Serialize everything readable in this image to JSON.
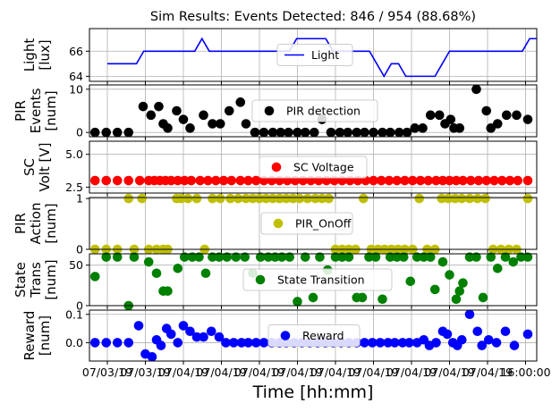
{
  "figure": {
    "title": "Sim Results: Events Detected: 846 / 954 (88.68%)",
    "xlabel": "Time [hh:mm]",
    "x_tick_labels": [
      "07/03/19",
      "07/03/19",
      "07/04/19",
      "07/04/19",
      "07/04/19",
      "07/04/19",
      "07/04/19",
      "07/04/19",
      "07/04/19",
      "07/04/19",
      "07/04/19",
      "16:00:00"
    ]
  },
  "chart_data": [
    {
      "type": "line",
      "name": "light",
      "ylabel": [
        "Light",
        "[lux]"
      ],
      "legend": "Light",
      "color": "#0000ff",
      "ylim": [
        63.6,
        67.8
      ],
      "yticks": [
        64,
        66
      ],
      "step": true,
      "x": [
        0,
        1,
        2,
        3,
        4,
        5,
        6,
        7,
        8,
        9,
        10,
        11,
        12,
        13,
        14,
        15,
        16,
        17,
        18,
        19,
        20,
        21,
        22,
        23,
        24,
        25,
        26,
        27,
        28,
        29,
        30,
        31,
        32,
        33,
        34,
        35,
        36,
        37,
        38,
        39,
        40,
        41,
        42,
        43,
        44,
        45,
        46,
        47,
        48,
        49,
        50,
        51,
        52,
        53,
        54,
        55,
        56,
        57,
        58,
        59
      ],
      "values": [
        65,
        65,
        65,
        65,
        65,
        66,
        66,
        66,
        66,
        66,
        66,
        66,
        66,
        67,
        66,
        66,
        66,
        66,
        66,
        66,
        66,
        66,
        66,
        66,
        66,
        66,
        67,
        67,
        67,
        67,
        67,
        66,
        66,
        66,
        66,
        66,
        66,
        65,
        64,
        65,
        65,
        64,
        64,
        64,
        64,
        64,
        65,
        66,
        66,
        66,
        66,
        66,
        66,
        66,
        66,
        66,
        66,
        66,
        67,
        67
      ]
    },
    {
      "type": "scatter",
      "name": "pir",
      "ylabel": [
        "PIR",
        "Events",
        "[num]"
      ],
      "legend": "PIR detection",
      "color": "#000000",
      "ylim": [
        -1,
        11
      ],
      "yticks": [
        0,
        10
      ],
      "points": [
        [
          0.5,
          0
        ],
        [
          1.5,
          0
        ],
        [
          2.5,
          0
        ],
        [
          3.5,
          0
        ],
        [
          4.8,
          6
        ],
        [
          5.5,
          4
        ],
        [
          6.2,
          6
        ],
        [
          6.6,
          2
        ],
        [
          7.0,
          1
        ],
        [
          7.8,
          5
        ],
        [
          8.4,
          3
        ],
        [
          9.0,
          1
        ],
        [
          10.2,
          4
        ],
        [
          11.0,
          2
        ],
        [
          11.7,
          2
        ],
        [
          12.5,
          5
        ],
        [
          13.5,
          7
        ],
        [
          14.0,
          2
        ],
        [
          14.8,
          0
        ],
        [
          15.6,
          0
        ],
        [
          16.4,
          0
        ],
        [
          17.1,
          0
        ],
        [
          17.8,
          0
        ],
        [
          18.6,
          0
        ],
        [
          19.3,
          0
        ],
        [
          20.1,
          0
        ],
        [
          20.8,
          3
        ],
        [
          21.6,
          0
        ],
        [
          22.4,
          0
        ],
        [
          23.1,
          0
        ],
        [
          23.9,
          0
        ],
        [
          24.6,
          0
        ],
        [
          25.4,
          0
        ],
        [
          26.2,
          0
        ],
        [
          26.9,
          0
        ],
        [
          27.7,
          0
        ],
        [
          28.4,
          0
        ],
        [
          29.1,
          1
        ],
        [
          29.8,
          1
        ],
        [
          30.5,
          4
        ],
        [
          31.3,
          4
        ],
        [
          31.8,
          2
        ],
        [
          32.3,
          3
        ],
        [
          32.6,
          1
        ],
        [
          33.1,
          1
        ],
        [
          34.6,
          10
        ],
        [
          35.5,
          5
        ],
        [
          35.9,
          1
        ],
        [
          36.5,
          2
        ],
        [
          37.3,
          4
        ],
        [
          38.2,
          4
        ],
        [
          39.2,
          3
        ]
      ]
    },
    {
      "type": "scatter",
      "name": "sc",
      "ylabel": [
        "SC",
        "Volt [V]"
      ],
      "legend": "SC Voltage",
      "color": "#ff0000",
      "ylim": [
        2.05,
        6.0
      ],
      "yticks": [
        2.5,
        5.0
      ],
      "points": [
        [
          0.5,
          3
        ],
        [
          1.5,
          3
        ],
        [
          2.5,
          3
        ],
        [
          3.5,
          3
        ],
        [
          4.5,
          3
        ],
        [
          5.3,
          3
        ],
        [
          5.8,
          3
        ],
        [
          6.3,
          3
        ],
        [
          6.8,
          3
        ],
        [
          7.3,
          3
        ],
        [
          7.9,
          3
        ],
        [
          8.5,
          3
        ],
        [
          9.1,
          3
        ],
        [
          9.9,
          3
        ],
        [
          10.6,
          3
        ],
        [
          11.3,
          3
        ],
        [
          12.0,
          3
        ],
        [
          12.7,
          3
        ],
        [
          13.5,
          3
        ],
        [
          14.2,
          3
        ],
        [
          14.9,
          3
        ],
        [
          15.6,
          3
        ],
        [
          16.3,
          3
        ],
        [
          17.0,
          3
        ],
        [
          17.7,
          3
        ],
        [
          18.4,
          3
        ],
        [
          19.1,
          3
        ],
        [
          19.8,
          3
        ],
        [
          20.5,
          3
        ],
        [
          21.2,
          3
        ],
        [
          21.9,
          3
        ],
        [
          22.6,
          3
        ],
        [
          23.3,
          3
        ],
        [
          24.0,
          3
        ],
        [
          24.7,
          3
        ],
        [
          25.4,
          3
        ],
        [
          26.1,
          3
        ],
        [
          26.8,
          3
        ],
        [
          27.5,
          3
        ],
        [
          28.2,
          3
        ],
        [
          28.9,
          3
        ],
        [
          29.6,
          3
        ],
        [
          30.3,
          3
        ],
        [
          31.0,
          3
        ],
        [
          31.6,
          3
        ],
        [
          32.2,
          3
        ],
        [
          32.8,
          3
        ],
        [
          33.4,
          3
        ],
        [
          34.1,
          3
        ],
        [
          34.8,
          3
        ],
        [
          35.5,
          3
        ],
        [
          36.2,
          3
        ],
        [
          36.9,
          3
        ],
        [
          37.6,
          3
        ],
        [
          38.3,
          3
        ],
        [
          39.2,
          3
        ]
      ]
    },
    {
      "type": "scatter",
      "name": "pir-action",
      "ylabel": [
        "PIR",
        "Action",
        "[num]"
      ],
      "legend": "PIR_OnOff",
      "color": "#bfbf00",
      "ylim": [
        0,
        1.02
      ],
      "yticks": [
        0,
        1
      ],
      "points": [
        [
          0.5,
          0
        ],
        [
          1.5,
          0
        ],
        [
          2.5,
          0
        ],
        [
          3.5,
          1
        ],
        [
          4.0,
          0
        ],
        [
          4.7,
          1
        ],
        [
          5.3,
          0
        ],
        [
          6.0,
          0
        ],
        [
          6.6,
          0
        ],
        [
          7.0,
          0
        ],
        [
          7.8,
          1
        ],
        [
          8.2,
          1
        ],
        [
          8.8,
          1
        ],
        [
          9.6,
          1
        ],
        [
          10.3,
          0
        ],
        [
          11.0,
          1
        ],
        [
          11.7,
          1
        ],
        [
          12.6,
          1
        ],
        [
          13.3,
          1
        ],
        [
          14.0,
          1
        ],
        [
          14.6,
          1
        ],
        [
          15.2,
          1
        ],
        [
          15.8,
          1
        ],
        [
          16.4,
          1
        ],
        [
          17.0,
          1
        ],
        [
          17.6,
          1
        ],
        [
          18.2,
          1
        ],
        [
          18.8,
          1
        ],
        [
          19.5,
          1
        ],
        [
          20.2,
          1
        ],
        [
          20.8,
          1
        ],
        [
          21.4,
          1
        ],
        [
          22.0,
          0
        ],
        [
          22.6,
          0
        ],
        [
          23.2,
          0
        ],
        [
          23.8,
          0
        ],
        [
          24.5,
          1
        ],
        [
          25.2,
          0
        ],
        [
          25.8,
          0
        ],
        [
          26.4,
          0
        ],
        [
          27.0,
          0
        ],
        [
          27.6,
          0
        ],
        [
          28.2,
          0
        ],
        [
          28.9,
          0
        ],
        [
          29.5,
          1
        ],
        [
          30.2,
          0
        ],
        [
          30.9,
          0
        ],
        [
          31.5,
          1
        ],
        [
          32.1,
          1
        ],
        [
          32.7,
          1
        ],
        [
          33.3,
          1
        ],
        [
          34.0,
          1
        ],
        [
          34.7,
          1
        ],
        [
          35.4,
          1
        ],
        [
          36.1,
          0
        ],
        [
          36.8,
          0
        ],
        [
          37.5,
          0
        ],
        [
          38.2,
          0
        ],
        [
          39.2,
          1
        ]
      ]
    },
    {
      "type": "scatter",
      "name": "state-trans",
      "ylabel": [
        "State",
        "Trans",
        "[num]"
      ],
      "legend": "State Transition",
      "color": "#008000",
      "ylim": [
        0,
        64
      ],
      "yticks": [
        0,
        50
      ],
      "points": [
        [
          0.5,
          36
        ],
        [
          1.5,
          60
        ],
        [
          2.5,
          60
        ],
        [
          3.5,
          0
        ],
        [
          4.0,
          60
        ],
        [
          5.3,
          54
        ],
        [
          6.0,
          40
        ],
        [
          6.6,
          18
        ],
        [
          7.0,
          18
        ],
        [
          7.9,
          46
        ],
        [
          8.5,
          60
        ],
        [
          9.2,
          60
        ],
        [
          9.8,
          60
        ],
        [
          10.4,
          40
        ],
        [
          11.0,
          60
        ],
        [
          11.6,
          60
        ],
        [
          12.3,
          60
        ],
        [
          13.1,
          60
        ],
        [
          13.9,
          60
        ],
        [
          14.6,
          40
        ],
        [
          15.3,
          60
        ],
        [
          16.0,
          60
        ],
        [
          16.6,
          60
        ],
        [
          17.2,
          60
        ],
        [
          17.9,
          60
        ],
        [
          18.6,
          5
        ],
        [
          19.3,
          60
        ],
        [
          20.0,
          10
        ],
        [
          20.6,
          60
        ],
        [
          21.3,
          44
        ],
        [
          22.0,
          60
        ],
        [
          22.6,
          60
        ],
        [
          23.2,
          60
        ],
        [
          23.9,
          10
        ],
        [
          24.4,
          10
        ],
        [
          25.0,
          60
        ],
        [
          25.6,
          60
        ],
        [
          26.2,
          8
        ],
        [
          26.9,
          60
        ],
        [
          27.5,
          60
        ],
        [
          28.1,
          60
        ],
        [
          28.7,
          30
        ],
        [
          29.3,
          60
        ],
        [
          29.9,
          60
        ],
        [
          30.5,
          60
        ],
        [
          30.9,
          20
        ],
        [
          31.6,
          54
        ],
        [
          32.2,
          38
        ],
        [
          32.8,
          8
        ],
        [
          33.1,
          18
        ],
        [
          33.4,
          28
        ],
        [
          34.0,
          60
        ],
        [
          34.6,
          60
        ],
        [
          35.2,
          10
        ],
        [
          35.9,
          60
        ],
        [
          36.5,
          46
        ],
        [
          37.2,
          60
        ],
        [
          37.9,
          54
        ],
        [
          38.6,
          60
        ],
        [
          39.2,
          60
        ]
      ]
    },
    {
      "type": "scatter",
      "name": "reward",
      "ylabel": [
        "Reward",
        "[num]"
      ],
      "legend": "Reward",
      "color": "#0000ff",
      "ylim": [
        -0.065,
        0.115
      ],
      "yticks": [
        0.0,
        0.1
      ],
      "points": [
        [
          0.5,
          0
        ],
        [
          1.5,
          0
        ],
        [
          2.5,
          0
        ],
        [
          3.5,
          0
        ],
        [
          4.4,
          0.06
        ],
        [
          5.0,
          -0.04
        ],
        [
          5.6,
          -0.05
        ],
        [
          6.0,
          0.01
        ],
        [
          6.4,
          -0.01
        ],
        [
          6.9,
          0.05
        ],
        [
          7.3,
          0.03
        ],
        [
          7.9,
          0
        ],
        [
          8.4,
          0.06
        ],
        [
          9.0,
          0.04
        ],
        [
          9.6,
          0.02
        ],
        [
          10.2,
          0.02
        ],
        [
          10.9,
          0.04
        ],
        [
          11.6,
          0.02
        ],
        [
          12.2,
          0
        ],
        [
          12.9,
          0
        ],
        [
          13.6,
          0
        ],
        [
          14.2,
          0
        ],
        [
          14.9,
          0
        ],
        [
          15.6,
          0
        ],
        [
          16.3,
          0
        ],
        [
          17.0,
          0
        ],
        [
          17.6,
          0
        ],
        [
          18.3,
          0
        ],
        [
          19.0,
          0
        ],
        [
          19.7,
          0
        ],
        [
          20.4,
          0
        ],
        [
          21.1,
          0
        ],
        [
          21.8,
          0
        ],
        [
          22.5,
          0
        ],
        [
          23.2,
          0
        ],
        [
          23.9,
          0
        ],
        [
          24.6,
          0
        ],
        [
          25.3,
          0
        ],
        [
          26.0,
          0
        ],
        [
          26.7,
          0
        ],
        [
          27.3,
          0
        ],
        [
          28.0,
          0
        ],
        [
          28.6,
          0
        ],
        [
          29.3,
          0
        ],
        [
          29.9,
          0.01
        ],
        [
          30.4,
          -0.01
        ],
        [
          31.0,
          0
        ],
        [
          31.6,
          0.04
        ],
        [
          32.0,
          0.03
        ],
        [
          32.5,
          0
        ],
        [
          32.9,
          -0.01
        ],
        [
          33.3,
          0.01
        ],
        [
          34.0,
          0.1
        ],
        [
          34.7,
          0.04
        ],
        [
          35.1,
          -0.01
        ],
        [
          35.7,
          0.01
        ],
        [
          36.4,
          0
        ],
        [
          37.2,
          0.04
        ],
        [
          38.0,
          -0.01
        ],
        [
          39.2,
          0.03
        ]
      ]
    }
  ]
}
